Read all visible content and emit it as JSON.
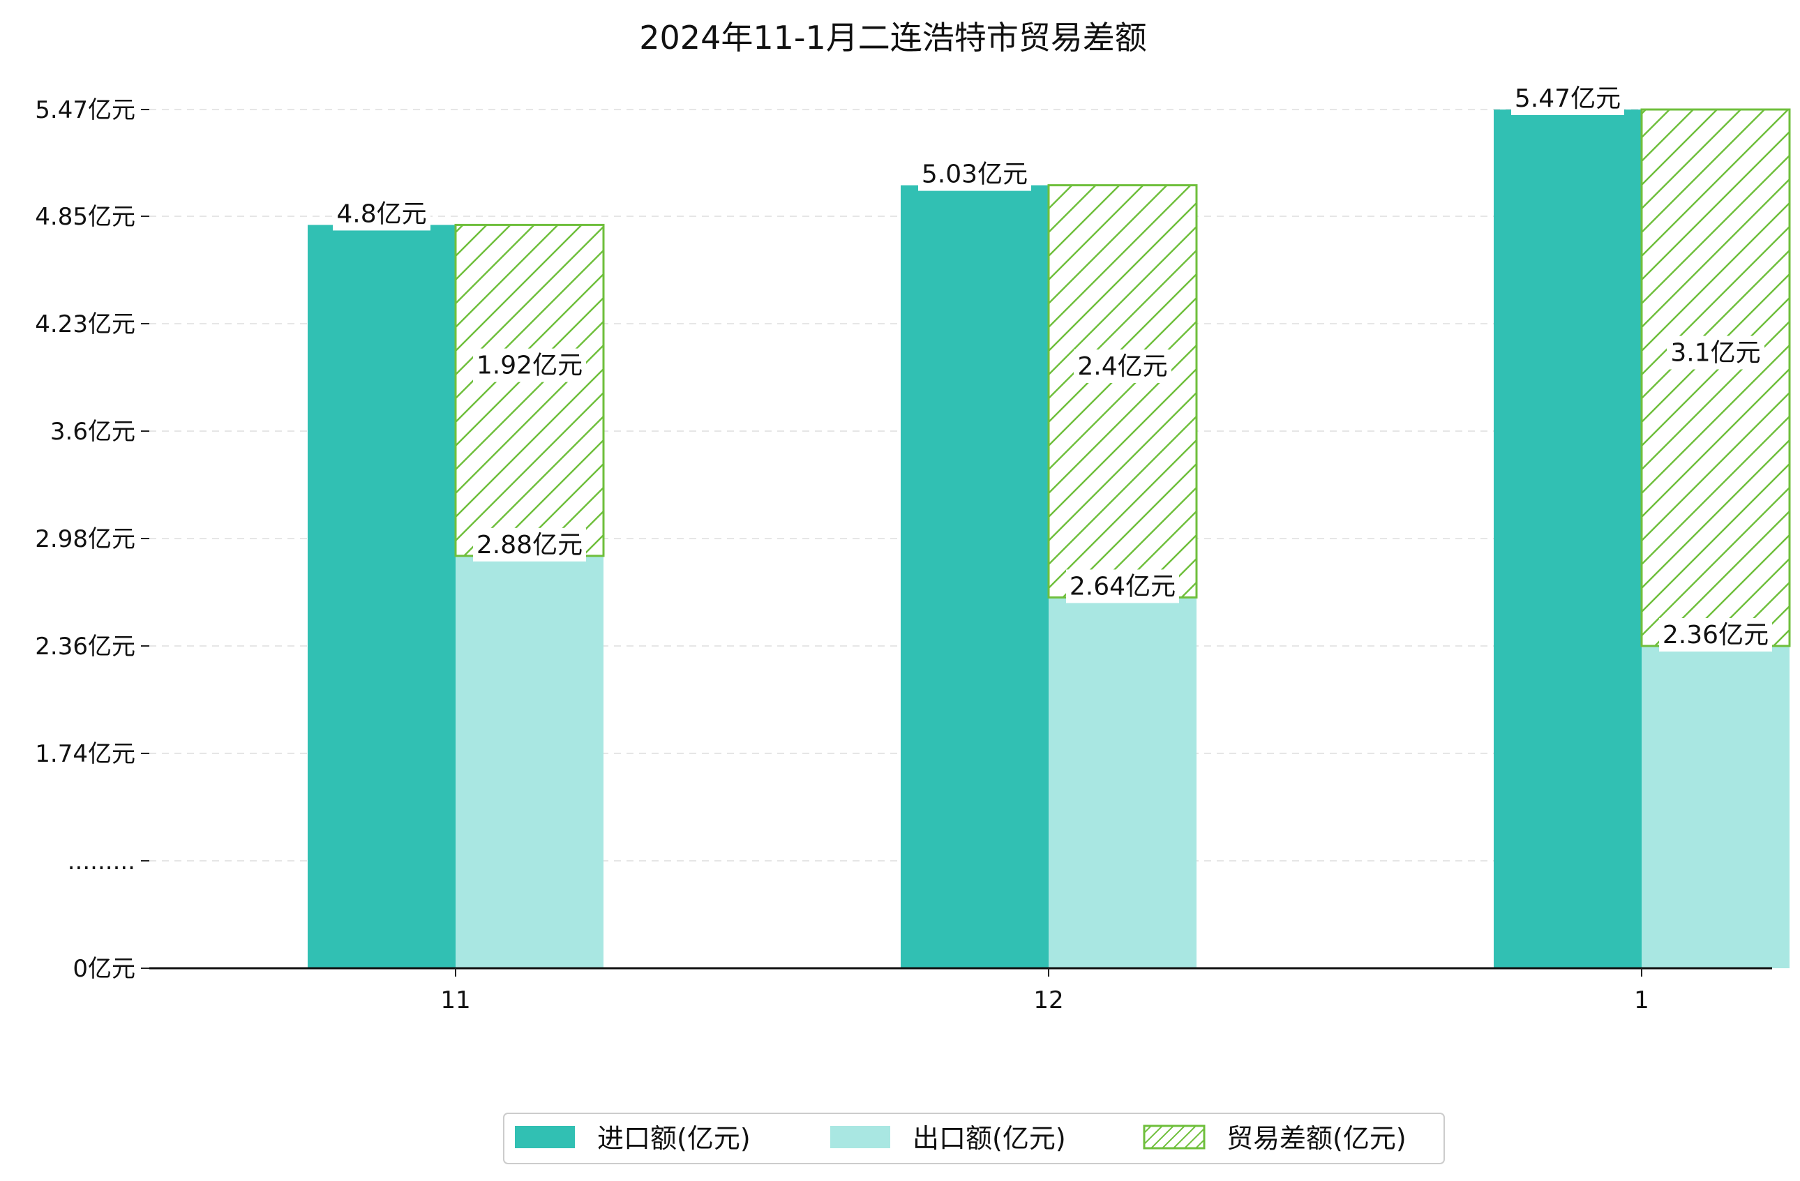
{
  "chart_data": {
    "type": "bar",
    "title": "2024年11-1月二连浩特市贸易差额",
    "categories": [
      "11",
      "12",
      "1"
    ],
    "series": [
      {
        "name": "进口额(亿元)",
        "values": [
          4.8,
          5.03,
          5.47
        ],
        "labels": [
          "4.8亿元",
          "5.03亿元",
          "5.47亿元"
        ],
        "color": "#31c0b3"
      },
      {
        "name": "出口额(亿元)",
        "values": [
          2.88,
          2.64,
          2.36
        ],
        "labels": [
          "2.88亿元",
          "2.64亿元",
          "2.36亿元"
        ],
        "color": "#a9e7e2"
      },
      {
        "name": "贸易差额(亿元)",
        "values": [
          1.92,
          2.4,
          3.1
        ],
        "labels": [
          "1.92亿元",
          "2.4亿元",
          "3.1亿元"
        ],
        "color": "#6fbf3c",
        "pattern": "hatch"
      }
    ],
    "yticks": [
      {
        "value": 0,
        "label": "0亿元"
      },
      {
        "value": 1.12,
        "label": "........."
      },
      {
        "value": 1.74,
        "label": "1.74亿元"
      },
      {
        "value": 2.36,
        "label": "2.36亿元"
      },
      {
        "value": 2.98,
        "label": "2.98亿元"
      },
      {
        "value": 3.6,
        "label": "3.6亿元"
      },
      {
        "value": 4.23,
        "label": "4.23亿元"
      },
      {
        "value": 4.85,
        "label": "4.85亿元"
      },
      {
        "value": 5.47,
        "label": "5.47亿元"
      }
    ],
    "y_axis_break": true,
    "grid": true,
    "legend_position": "bottom-center",
    "xlabel": "",
    "ylabel": ""
  }
}
